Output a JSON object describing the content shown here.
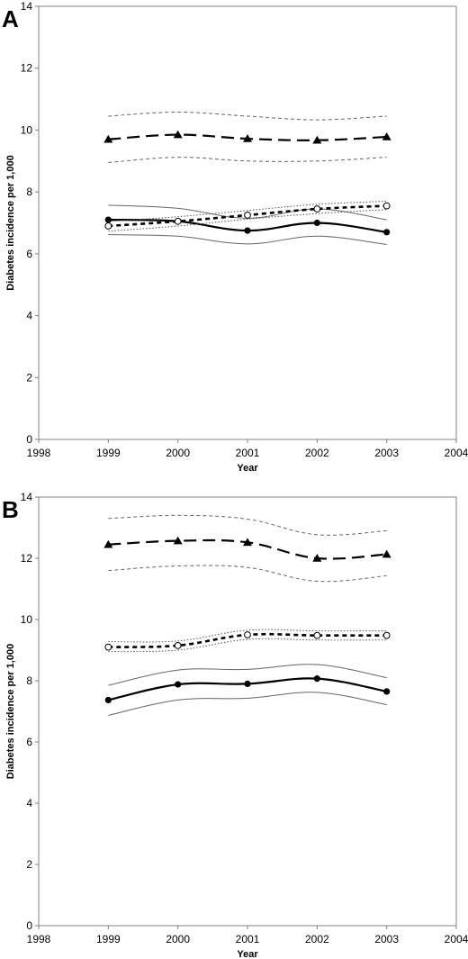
{
  "chart_data": [
    {
      "panel": "A",
      "type": "line",
      "xlabel": "Year",
      "ylabel": "Diabetes incidence per 1,000",
      "xlim": [
        1998,
        2004
      ],
      "ylim": [
        0,
        14
      ],
      "xticks": [
        1998,
        1999,
        2000,
        2001,
        2002,
        2003,
        2004
      ],
      "yticks": [
        0,
        2,
        4,
        6,
        8,
        10,
        12,
        14
      ],
      "grid": false,
      "legend": "none",
      "x": [
        1999,
        2000,
        2001,
        2002,
        2003
      ],
      "series": [
        {
          "style": "dashed-long",
          "marker": "triangle",
          "values": [
            9.7,
            9.85,
            9.72,
            9.67,
            9.78
          ],
          "ci_upper": [
            10.45,
            10.58,
            10.45,
            10.33,
            10.45
          ],
          "ci_lower": [
            8.95,
            9.12,
            9.0,
            9.0,
            9.12
          ]
        },
        {
          "style": "solid",
          "marker": "filled-circle",
          "values": [
            7.1,
            7.05,
            6.75,
            7.0,
            6.7
          ],
          "ci_upper": [
            7.57,
            7.47,
            7.15,
            7.45,
            7.1
          ],
          "ci_lower": [
            6.62,
            6.57,
            6.32,
            6.57,
            6.3
          ]
        },
        {
          "style": "dotted-short",
          "marker": "open-circle",
          "values": [
            6.9,
            7.05,
            7.25,
            7.45,
            7.55
          ],
          "ci_upper": [
            7.05,
            7.2,
            7.4,
            7.6,
            7.7
          ],
          "ci_lower": [
            6.73,
            6.9,
            7.12,
            7.3,
            7.43
          ]
        }
      ]
    },
    {
      "panel": "B",
      "type": "line",
      "xlabel": "Year",
      "ylabel": "Diabetes incidence per 1,000",
      "xlim": [
        1998,
        2004
      ],
      "ylim": [
        0,
        14
      ],
      "xticks": [
        1998,
        1999,
        2000,
        2001,
        2002,
        2003,
        2004
      ],
      "yticks": [
        0,
        2,
        4,
        6,
        8,
        10,
        12,
        14
      ],
      "grid": false,
      "legend": "none",
      "x": [
        1999,
        2000,
        2001,
        2002,
        2003
      ],
      "series": [
        {
          "style": "dashed-long",
          "marker": "triangle",
          "values": [
            12.45,
            12.57,
            12.52,
            12.0,
            12.13
          ],
          "ci_upper": [
            13.3,
            13.4,
            13.28,
            12.77,
            12.9
          ],
          "ci_lower": [
            11.6,
            11.75,
            11.7,
            11.25,
            11.43
          ]
        },
        {
          "style": "dotted-short",
          "marker": "open-circle",
          "values": [
            9.1,
            9.15,
            9.5,
            9.48,
            9.48
          ],
          "ci_upper": [
            9.28,
            9.3,
            9.65,
            9.63,
            9.63
          ],
          "ci_lower": [
            8.95,
            9.0,
            9.35,
            9.33,
            9.33
          ]
        },
        {
          "style": "solid",
          "marker": "filled-circle",
          "values": [
            7.37,
            7.88,
            7.9,
            8.07,
            7.65
          ],
          "ci_upper": [
            7.85,
            8.35,
            8.37,
            8.53,
            8.1
          ],
          "ci_lower": [
            6.87,
            7.37,
            7.43,
            7.62,
            7.22
          ]
        }
      ]
    }
  ]
}
